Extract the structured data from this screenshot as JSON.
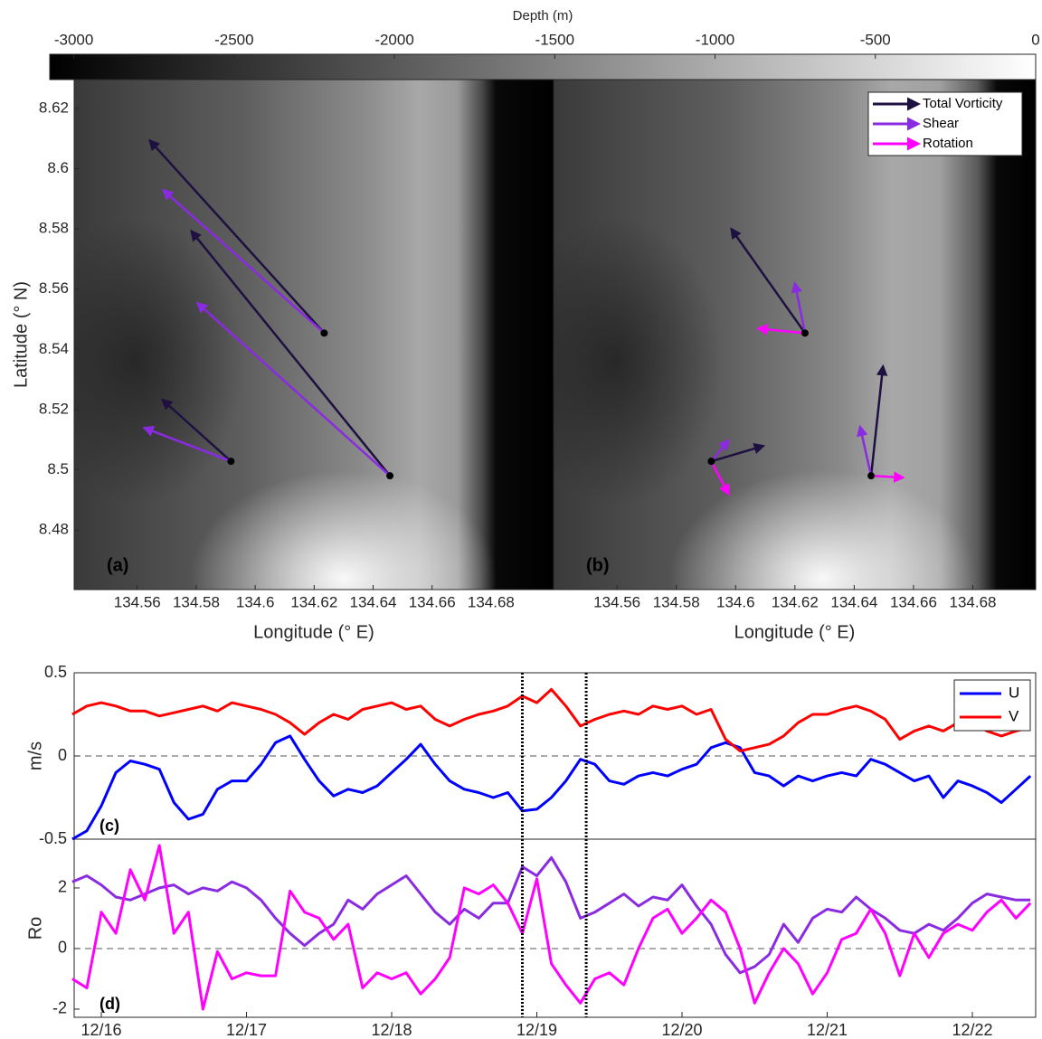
{
  "chart_data": [
    {
      "type": "colorbar",
      "xlabel": "Depth (m)",
      "xlim": [
        -3075,
        0
      ],
      "xticks": [
        -3000,
        -2500,
        -2000,
        -1500,
        -1000,
        -500,
        0
      ]
    },
    {
      "type": "quiver",
      "panel_label": "(a)",
      "xlabel": "Longitude (° E)",
      "ylabel": "Latitude (° N)",
      "xlim": [
        134.5386,
        134.7012
      ],
      "ylim": [
        8.4602,
        8.6296
      ],
      "xticks": [
        134.56,
        134.58,
        134.6,
        134.62,
        134.64,
        134.66,
        134.68
      ],
      "yticks": [
        8.48,
        8.5,
        8.52,
        8.54,
        8.56,
        8.58,
        8.6,
        8.62
      ],
      "points": {
        "color": "#000000",
        "x": [
          134.5918,
          134.6234,
          134.6457
        ],
        "y": [
          8.5028,
          8.5454,
          8.498
        ]
      },
      "series": [
        {
          "color": "#1e1040",
          "x": [
            134.6234,
            134.6457,
            134.5918
          ],
          "y": [
            8.5454,
            8.498,
            8.5028
          ],
          "x_end": [
            134.5643,
            134.5784,
            134.5686
          ],
          "y_end": [
            8.6093,
            8.5792,
            8.5232
          ]
        },
        {
          "color": "#8a2be2",
          "x": [
            134.6234,
            134.6457,
            134.5918
          ],
          "y": [
            8.5454,
            8.498,
            8.5028
          ],
          "x_end": [
            134.5689,
            134.5805,
            134.5624
          ],
          "y_end": [
            8.5928,
            8.5553,
            8.5139
          ]
        }
      ]
    },
    {
      "type": "quiver",
      "panel_label": "(b)",
      "xlabel": "Longitude (° E)",
      "xlim": [
        134.5386,
        134.7012
      ],
      "ylim": [
        8.4602,
        8.6296
      ],
      "xticks": [
        134.56,
        134.58,
        134.6,
        134.62,
        134.64,
        134.66,
        134.68
      ],
      "points": {
        "color": "#000000",
        "x": [
          134.5918,
          134.6234,
          134.6457
        ],
        "y": [
          8.5028,
          8.5454,
          8.498
        ]
      },
      "series": [
        {
          "name": "Total Vorticity",
          "color": "#1e1040",
          "x": [
            134.6234,
            134.6457,
            134.5918
          ],
          "y": [
            8.5454,
            8.498,
            8.5028
          ],
          "x_end": [
            134.5986,
            134.6497,
            134.6093
          ],
          "y_end": [
            8.5799,
            8.5343,
            8.5079
          ]
        },
        {
          "name": "Shear",
          "color": "#8a2be2",
          "x": [
            134.6234,
            134.6457,
            134.5918
          ],
          "y": [
            8.5454,
            8.498,
            8.5028
          ],
          "x_end": [
            134.62,
            134.642,
            134.5976
          ],
          "y_end": [
            8.5619,
            8.5142,
            8.5097
          ]
        },
        {
          "name": "Rotation",
          "color": "#ff00ff",
          "x": [
            134.6234,
            134.6457,
            134.5918
          ],
          "y": [
            8.5454,
            8.498,
            8.5028
          ],
          "x_end": [
            134.6077,
            134.6564,
            134.5976
          ],
          "y_end": [
            8.5469,
            8.4974,
            8.492
          ]
        }
      ],
      "legend": "upper right"
    },
    {
      "type": "line",
      "panel_label": "(c)",
      "ylabel": "m/s",
      "xlim": [
        15.813,
        22.436
      ],
      "ylim": [
        -0.5,
        0.5
      ],
      "yticks": [
        -0.5,
        0,
        0.5
      ],
      "reference_line": 0,
      "vlines": [
        18.9,
        19.34
      ],
      "legend": "upper right",
      "x": [
        15.8,
        15.9,
        16,
        16.1,
        16.2,
        16.3,
        16.4,
        16.5,
        16.6,
        16.7,
        16.8,
        16.9,
        17,
        17.1,
        17.2,
        17.3,
        17.4,
        17.5,
        17.6,
        17.7,
        17.8,
        17.9,
        18,
        18.1,
        18.2,
        18.3,
        18.4,
        18.5,
        18.6,
        18.7,
        18.8,
        18.9,
        19,
        19.1,
        19.2,
        19.3,
        19.4,
        19.5,
        19.6,
        19.7,
        19.8,
        19.9,
        20,
        20.1,
        20.2,
        20.3,
        20.4,
        20.5,
        20.6,
        20.7,
        20.8,
        20.9,
        21,
        21.1,
        21.2,
        21.3,
        21.4,
        21.5,
        21.6,
        21.7,
        21.8,
        21.9,
        22,
        22.1,
        22.2,
        22.3,
        22.4
      ],
      "series": [
        {
          "name": "U",
          "color": "#0000ff",
          "values": [
            -0.5,
            -0.45,
            -0.3,
            -0.1,
            -0.03,
            -0.05,
            -0.08,
            -0.28,
            -0.38,
            -0.35,
            -0.2,
            -0.15,
            -0.15,
            -0.05,
            0.08,
            0.12,
            -0.02,
            -0.15,
            -0.24,
            -0.2,
            -0.22,
            -0.18,
            -0.1,
            -0.02,
            0.07,
            -0.05,
            -0.15,
            -0.2,
            -0.22,
            -0.25,
            -0.22,
            -0.33,
            -0.32,
            -0.25,
            -0.15,
            -0.02,
            -0.05,
            -0.15,
            -0.17,
            -0.12,
            -0.1,
            -0.12,
            -0.08,
            -0.05,
            0.05,
            0.08,
            0.05,
            -0.1,
            -0.12,
            -0.18,
            -0.12,
            -0.15,
            -0.12,
            -0.1,
            -0.12,
            -0.02,
            -0.05,
            -0.1,
            -0.15,
            -0.12,
            -0.25,
            -0.15,
            -0.18,
            -0.22,
            -0.28,
            -0.2,
            -0.12
          ]
        },
        {
          "name": "V",
          "color": "#ff0000",
          "values": [
            0.25,
            0.3,
            0.32,
            0.3,
            0.27,
            0.27,
            0.24,
            0.26,
            0.28,
            0.3,
            0.27,
            0.32,
            0.3,
            0.28,
            0.25,
            0.2,
            0.13,
            0.2,
            0.25,
            0.22,
            0.28,
            0.3,
            0.32,
            0.28,
            0.3,
            0.22,
            0.18,
            0.22,
            0.25,
            0.27,
            0.3,
            0.36,
            0.32,
            0.4,
            0.3,
            0.18,
            0.22,
            0.25,
            0.27,
            0.25,
            0.3,
            0.28,
            0.3,
            0.25,
            0.28,
            0.1,
            0.03,
            0.05,
            0.07,
            0.12,
            0.2,
            0.25,
            0.25,
            0.28,
            0.3,
            0.27,
            0.22,
            0.1,
            0.15,
            0.18,
            0.15,
            0.2,
            0.2,
            0.15,
            0.12,
            0.15,
            0.17
          ]
        }
      ]
    },
    {
      "type": "line",
      "panel_label": "(d)",
      "ylabel": "Ro",
      "xlim": [
        15.813,
        22.436
      ],
      "ylim": [
        -2.27,
        3.61
      ],
      "yticks": [
        -2,
        0,
        2
      ],
      "reference_line": 0,
      "vlines": [
        18.9,
        19.34
      ],
      "xticks": [
        {
          "value": 16,
          "label": "12/16"
        },
        {
          "value": 17,
          "label": "12/17"
        },
        {
          "value": 18,
          "label": "12/18"
        },
        {
          "value": 19,
          "label": "12/19"
        },
        {
          "value": 20,
          "label": "12/20"
        },
        {
          "value": 21,
          "label": "12/21"
        },
        {
          "value": 22,
          "label": "12/22"
        }
      ],
      "x": [
        15.8,
        15.9,
        16,
        16.1,
        16.2,
        16.3,
        16.4,
        16.5,
        16.6,
        16.7,
        16.8,
        16.9,
        17,
        17.1,
        17.2,
        17.3,
        17.4,
        17.5,
        17.6,
        17.7,
        17.8,
        17.9,
        18,
        18.1,
        18.2,
        18.3,
        18.4,
        18.5,
        18.6,
        18.7,
        18.8,
        18.9,
        19,
        19.1,
        19.2,
        19.3,
        19.4,
        19.5,
        19.6,
        19.7,
        19.8,
        19.9,
        20,
        20.1,
        20.2,
        20.3,
        20.4,
        20.5,
        20.6,
        20.7,
        20.8,
        20.9,
        21,
        21.1,
        21.2,
        21.3,
        21.4,
        21.5,
        21.6,
        21.7,
        21.8,
        21.9,
        22,
        22.1,
        22.2,
        22.3,
        22.4
      ],
      "series": [
        {
          "color": "#8a2be2",
          "values": [
            2.2,
            2.4,
            2.1,
            1.7,
            1.6,
            1.8,
            2.0,
            2.1,
            1.8,
            2.0,
            1.9,
            2.2,
            2.0,
            1.6,
            1.0,
            0.5,
            0.1,
            0.5,
            0.8,
            1.6,
            1.3,
            1.8,
            2.1,
            2.4,
            1.8,
            1.2,
            0.8,
            1.3,
            1.0,
            1.5,
            1.5,
            2.7,
            2.4,
            3.0,
            2.2,
            1.0,
            1.2,
            1.5,
            1.8,
            1.4,
            1.7,
            1.6,
            2.1,
            1.4,
            0.8,
            -0.2,
            -0.8,
            -0.6,
            -0.2,
            0.8,
            0.2,
            1.0,
            1.3,
            1.2,
            1.7,
            1.3,
            1.0,
            0.6,
            0.5,
            0.8,
            0.6,
            1.0,
            1.5,
            1.8,
            1.7,
            1.6,
            1.6
          ]
        },
        {
          "color": "#ff00ff",
          "values": [
            -1.0,
            -1.3,
            1.2,
            0.5,
            2.6,
            1.6,
            3.4,
            0.5,
            1.2,
            -2.0,
            -0.1,
            -1.0,
            -0.8,
            -0.9,
            -0.9,
            1.9,
            1.2,
            1.0,
            0.3,
            0.8,
            -1.3,
            -0.8,
            -1.0,
            -0.8,
            -1.5,
            -1.0,
            -0.3,
            2.0,
            1.8,
            2.1,
            1.5,
            0.5,
            2.3,
            -0.5,
            -1.2,
            -1.8,
            -1.0,
            -0.8,
            -1.2,
            0.0,
            1.0,
            1.3,
            0.5,
            1.0,
            1.6,
            1.2,
            0.0,
            -1.8,
            -0.8,
            0.0,
            -0.5,
            -1.5,
            -0.8,
            0.3,
            0.5,
            1.3,
            0.5,
            -0.9,
            0.5,
            -0.3,
            0.5,
            0.8,
            0.6,
            1.2,
            1.6,
            1.0,
            1.5
          ]
        }
      ]
    }
  ]
}
